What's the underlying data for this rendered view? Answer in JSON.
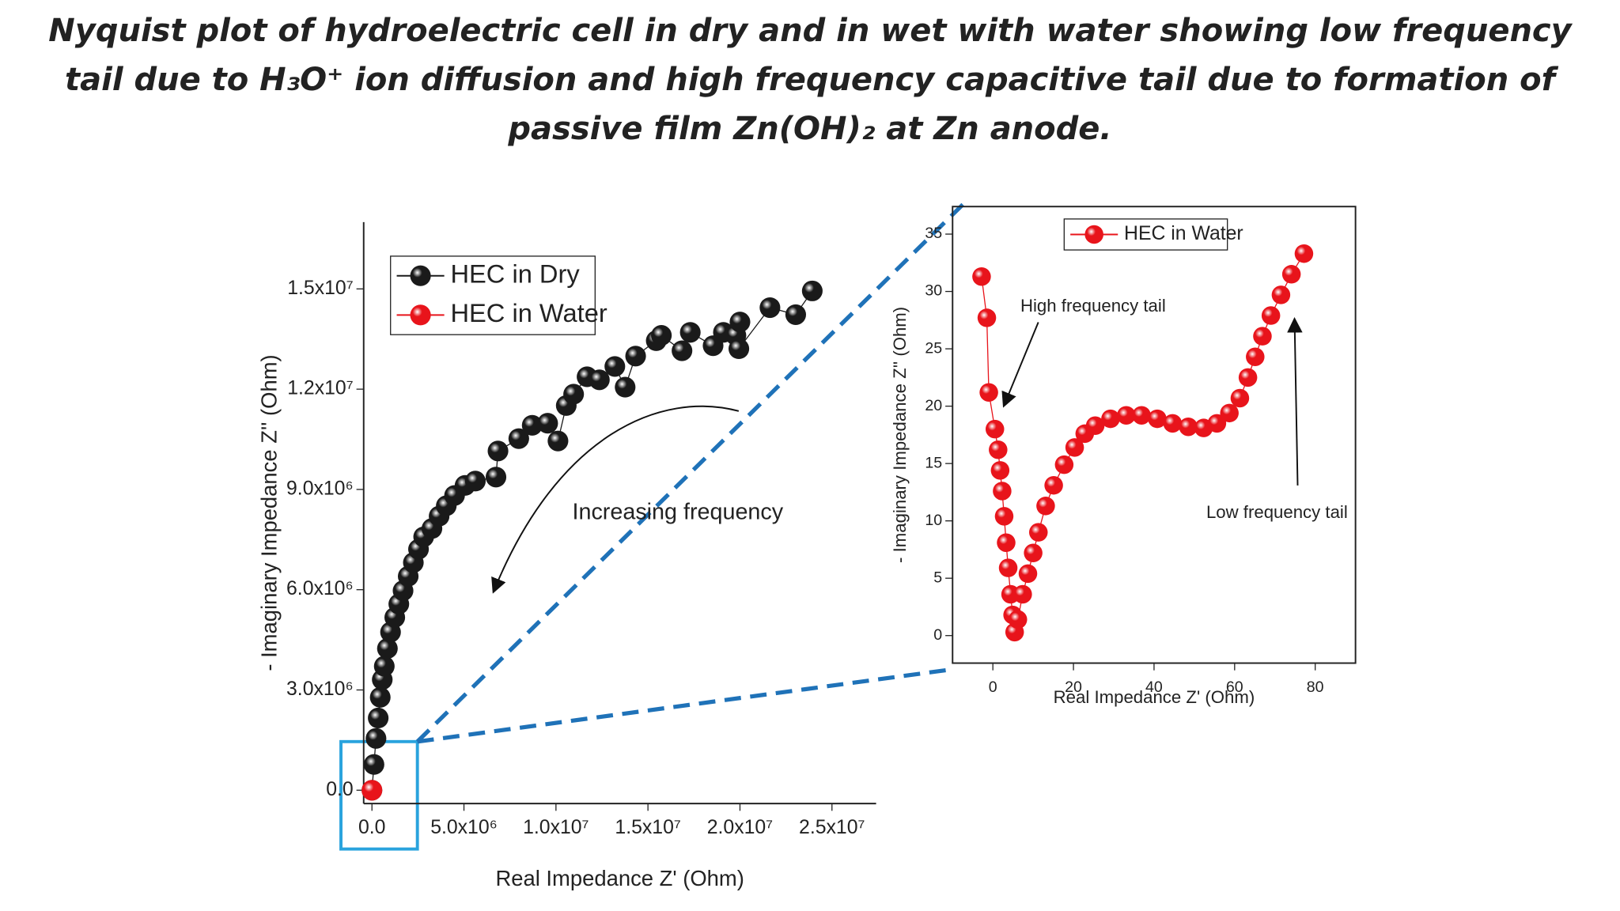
{
  "title": "Nyquist plot of hydroelectric cell in dry and in wet with water showing low frequency tail due to H₃O⁺ ion diffusion and high frequency capacitive tail due to formation of passive film Zn(OH)₂ at Zn anode.",
  "chart_data": [
    {
      "type": "scatter",
      "x_label": "Real Impedance Z' (Ohm)",
      "y_label": "- Imaginary Impedance Z'' (Ohm)",
      "annotations": [
        "Increasing frequency"
      ],
      "xlim": [
        -450000,
        27400000
      ],
      "ylim": [
        -400000,
        17000000
      ],
      "xticks": [
        {
          "value": 0,
          "label": "0.0"
        },
        {
          "value": 5000000,
          "label": "5.0x10⁶"
        },
        {
          "value": 10000000,
          "label": "1.0x10⁷"
        },
        {
          "value": 15000000,
          "label": "1.5x10⁷"
        },
        {
          "value": 20000000,
          "label": "2.0x10⁷"
        },
        {
          "value": 25000000,
          "label": "2.5x10⁷"
        }
      ],
      "yticks": [
        {
          "value": 0,
          "label": "0.0"
        },
        {
          "value": 3000000,
          "label": "3.0x10⁶"
        },
        {
          "value": 6000000,
          "label": "6.0x10⁶"
        },
        {
          "value": 9000000,
          "label": "9.0x10⁶"
        },
        {
          "value": 12000000,
          "label": "1.2x10⁷"
        },
        {
          "value": 15000000,
          "label": "1.5x10⁷"
        }
      ],
      "series": [
        {
          "name": "HEC in Dry",
          "color": "#1a1a1a",
          "x": [
            0,
            110000,
            220000,
            340000,
            450000,
            560000,
            670000,
            840000,
            1010000,
            1240000,
            1460000,
            1690000,
            1970000,
            2250000,
            2530000,
            2810000,
            3260000,
            3650000,
            4040000,
            4490000,
            5060000,
            5620000,
            6740000,
            6850000,
            7980000,
            8710000,
            9550000,
            10110000,
            10560000,
            10960000,
            11690000,
            12360000,
            13200000,
            13760000,
            14330000,
            15450000,
            15730000,
            16850000,
            17300000,
            18540000,
            19100000,
            19780000,
            20000000,
            19940000,
            21630000,
            23030000,
            23930000
          ],
          "values": [
            0,
            770000,
            1550000,
            2160000,
            2780000,
            3310000,
            3710000,
            4240000,
            4730000,
            5170000,
            5570000,
            5970000,
            6400000,
            6810000,
            7210000,
            7580000,
            7830000,
            8200000,
            8510000,
            8820000,
            9120000,
            9250000,
            9370000,
            10150000,
            10520000,
            10920000,
            10980000,
            10450000,
            11510000,
            11850000,
            12370000,
            12280000,
            12680000,
            12060000,
            12990000,
            13450000,
            13610000,
            13150000,
            13700000,
            13300000,
            13700000,
            13610000,
            14010000,
            13210000,
            14440000,
            14230000,
            14940000
          ]
        },
        {
          "name": "HEC in Water",
          "color": "#e8141b",
          "x": [
            0
          ],
          "values": [
            0
          ]
        }
      ]
    },
    {
      "type": "scatter",
      "x_label": "Real Impedance Z' (Ohm)",
      "y_label": "- Imaginary Impedance Z'' (Ohm)",
      "annotations": [
        "High frequency tail",
        "Low frequency tail"
      ],
      "xlim": [
        -10,
        90
      ],
      "ylim": [
        -2.4,
        37.4
      ],
      "xticks": [
        0,
        20,
        40,
        60,
        80
      ],
      "yticks": [
        0,
        5,
        10,
        15,
        20,
        25,
        30,
        35
      ],
      "series": [
        {
          "name": "HEC in Water",
          "color": "#e8141b",
          "x": [
            -2.8,
            -1.5,
            -1.0,
            0.5,
            1.3,
            1.8,
            2.3,
            2.8,
            3.3,
            3.8,
            4.4,
            4.9,
            5.4,
            6.2,
            7.4,
            8.7,
            10,
            11.3,
            13.1,
            15.1,
            17.7,
            20.3,
            22.8,
            25.4,
            29.2,
            33.1,
            36.9,
            40.8,
            44.6,
            48.5,
            52.3,
            55.6,
            58.7,
            61.3,
            63.3,
            65.1,
            66.9,
            69.0,
            71.5,
            74.1,
            77.2
          ],
          "values": [
            31.3,
            27.7,
            21.2,
            18.0,
            16.2,
            14.4,
            12.6,
            10.4,
            8.1,
            5.9,
            3.6,
            1.8,
            0.3,
            1.4,
            3.6,
            5.4,
            7.2,
            9.0,
            11.3,
            13.1,
            14.9,
            16.4,
            17.6,
            18.3,
            18.9,
            19.2,
            19.2,
            18.9,
            18.5,
            18.2,
            18.1,
            18.5,
            19.4,
            20.7,
            22.5,
            24.3,
            26.1,
            27.9,
            29.7,
            31.5,
            33.3
          ]
        }
      ]
    }
  ]
}
